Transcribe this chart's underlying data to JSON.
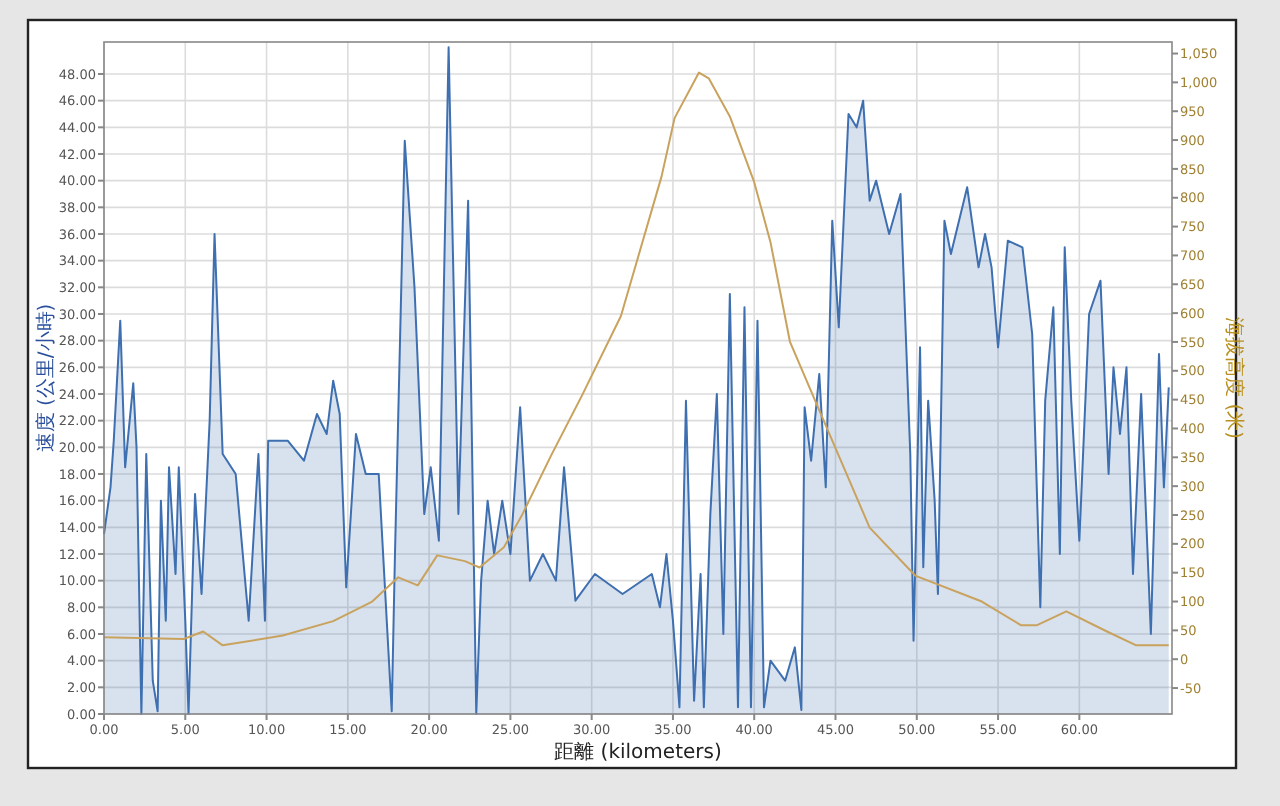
{
  "chart_data": {
    "type": "area",
    "xlabel": "距離 (kilometers)",
    "ylabel": "速度 (公里/小時)",
    "y2label": "海拔高度 (米)",
    "grid": true,
    "line_style": "solid",
    "xlim": [
      0,
      65.7
    ],
    "ylim": [
      0,
      50.4
    ],
    "y2lim": [
      -95,
      1070
    ],
    "xticks": [
      {
        "value": 0,
        "label": "0.00"
      },
      {
        "value": 5,
        "label": "5.00"
      },
      {
        "value": 10,
        "label": "10.00"
      },
      {
        "value": 15,
        "label": "15.00"
      },
      {
        "value": 20,
        "label": "20.00"
      },
      {
        "value": 25,
        "label": "25.00"
      },
      {
        "value": 30,
        "label": "30.00"
      },
      {
        "value": 35,
        "label": "35.00"
      },
      {
        "value": 40,
        "label": "40.00"
      },
      {
        "value": 45,
        "label": "45.00"
      },
      {
        "value": 50,
        "label": "50.00"
      },
      {
        "value": 55,
        "label": "55.00"
      },
      {
        "value": 60,
        "label": "60.00"
      }
    ],
    "yticks": [
      {
        "value": 0,
        "label": "0.00"
      },
      {
        "value": 2,
        "label": "2.00"
      },
      {
        "value": 4,
        "label": "4.00"
      },
      {
        "value": 6,
        "label": "6.00"
      },
      {
        "value": 8,
        "label": "8.00"
      },
      {
        "value": 10,
        "label": "10.00"
      },
      {
        "value": 12,
        "label": "12.00"
      },
      {
        "value": 14,
        "label": "14.00"
      },
      {
        "value": 16,
        "label": "16.00"
      },
      {
        "value": 18,
        "label": "18.00"
      },
      {
        "value": 20,
        "label": "20.00"
      },
      {
        "value": 22,
        "label": "22.00"
      },
      {
        "value": 24,
        "label": "24.00"
      },
      {
        "value": 26,
        "label": "26.00"
      },
      {
        "value": 28,
        "label": "28.00"
      },
      {
        "value": 30,
        "label": "30.00"
      },
      {
        "value": 32,
        "label": "32.00"
      },
      {
        "value": 34,
        "label": "34.00"
      },
      {
        "value": 36,
        "label": "36.00"
      },
      {
        "value": 38,
        "label": "38.00"
      },
      {
        "value": 40,
        "label": "40.00"
      },
      {
        "value": 42,
        "label": "42.00"
      },
      {
        "value": 44,
        "label": "44.00"
      },
      {
        "value": 46,
        "label": "46.00"
      },
      {
        "value": 48,
        "label": "48.00"
      }
    ],
    "y2ticks": [
      -50,
      0,
      50,
      100,
      150,
      200,
      250,
      300,
      350,
      400,
      450,
      500,
      550,
      600,
      650,
      700,
      750,
      800,
      850,
      900,
      950,
      {
        "value": 1000,
        "label": "1,000"
      },
      {
        "value": 1050,
        "label": "1,050"
      }
    ],
    "series": [
      {
        "color": "#3e6fb0",
        "x": [
          0,
          0.4,
          0.6,
          1.0,
          1.3,
          1.8,
          2.0,
          2.3,
          2.6,
          3.0,
          3.3,
          3.5,
          3.8,
          4.0,
          4.4,
          4.6,
          5.0,
          5.2,
          5.6,
          6.0,
          6.5,
          6.8,
          7.3,
          8.1,
          8.9,
          9.5,
          9.9,
          10.1,
          11.3,
          12.3,
          13.1,
          13.7,
          14.1,
          14.5,
          14.9,
          15.5,
          16.1,
          16.9,
          17.7,
          17.9,
          18.5,
          19.1,
          19.7,
          20.1,
          20.6,
          21.2,
          21.8,
          22.4,
          22.9,
          23.2,
          23.6,
          24.0,
          24.5,
          25.0,
          25.6,
          26.2,
          27.0,
          27.8,
          28.3,
          29.0,
          30.2,
          31.9,
          33.7,
          34.2,
          34.6,
          35.0,
          35.4,
          35.8,
          36.3,
          36.7,
          36.9,
          37.3,
          37.7,
          38.1,
          38.5,
          39.0,
          39.4,
          39.8,
          40.2,
          40.6,
          41.0,
          41.9,
          42.5,
          42.9,
          43.1,
          43.5,
          44.0,
          44.4,
          44.8,
          45.2,
          45.8,
          46.3,
          46.7,
          47.1,
          47.5,
          48.3,
          49.0,
          49.6,
          49.8,
          50.2,
          50.4,
          50.7,
          51.1,
          51.3,
          51.7,
          52.1,
          53.1,
          53.8,
          54.2,
          54.6,
          55.0,
          55.6,
          56.5,
          57.1,
          57.6,
          57.9,
          58.4,
          58.8,
          59.1,
          59.5,
          60.0,
          60.6,
          61.3,
          61.8,
          62.1,
          62.5,
          62.9,
          63.3,
          63.8,
          64.4,
          64.9,
          65.2,
          65.5
        ],
        "values": [
          13.5,
          17,
          20.5,
          29.5,
          18.5,
          24.8,
          20,
          0,
          19.5,
          2.5,
          0.2,
          16,
          7,
          18.5,
          10.5,
          18.5,
          7,
          0,
          16.5,
          9,
          22,
          36,
          19.5,
          18,
          7,
          19.5,
          7,
          20.5,
          20.5,
          19,
          22.5,
          21,
          25,
          22.5,
          9.5,
          21,
          18,
          18,
          0.2,
          12,
          43,
          32,
          15,
          18.5,
          13,
          50,
          15,
          38.5,
          0,
          10,
          16,
          12,
          16,
          12,
          23,
          10,
          12,
          10,
          18.5,
          8.5,
          10.5,
          9,
          10.5,
          8,
          12,
          7,
          0.5,
          23.5,
          1,
          10.5,
          0.5,
          15,
          24,
          6,
          31.5,
          0.5,
          30.5,
          0.5,
          29.5,
          0.5,
          4,
          2.5,
          5,
          0.3,
          23,
          19,
          25.5,
          17,
          37,
          29,
          45,
          44,
          46,
          38.5,
          40,
          36,
          39,
          19.5,
          5.5,
          27.5,
          11,
          23.5,
          16,
          9,
          37,
          34.5,
          39.5,
          33.5,
          36,
          33.5,
          27.5,
          35.5,
          35,
          28.5,
          8,
          23.5,
          30.5,
          12,
          35,
          23.5,
          13,
          30,
          32.5,
          18,
          26,
          21,
          26,
          10.5,
          24,
          6,
          27,
          17,
          24.5
        ]
      },
      {
        "type": "line",
        "axis": "y2",
        "color": "#c9a25e",
        "x": [
          0,
          4.9,
          6.1,
          7.3,
          11.0,
          14.1,
          16.5,
          18.1,
          19.3,
          20.5,
          22.2,
          23.1,
          24.6,
          25.7,
          27.5,
          29.4,
          31.8,
          34.3,
          35.1,
          36.6,
          37.2,
          38.5,
          40.0,
          41.0,
          42.2,
          44.3,
          47.1,
          49.9,
          54.0,
          56.4,
          57.4,
          59.2,
          61.7,
          63.5,
          65.5
        ],
        "values": [
          38,
          35,
          48,
          24,
          41,
          66,
          100,
          142,
          128,
          180,
          170,
          159,
          194,
          249,
          353,
          457,
          595,
          837,
          938,
          1017,
          1007,
          941,
          827,
          723,
          550,
          412,
          228,
          145,
          100,
          59,
          59,
          83,
          48,
          24,
          24
        ]
      }
    ]
  }
}
